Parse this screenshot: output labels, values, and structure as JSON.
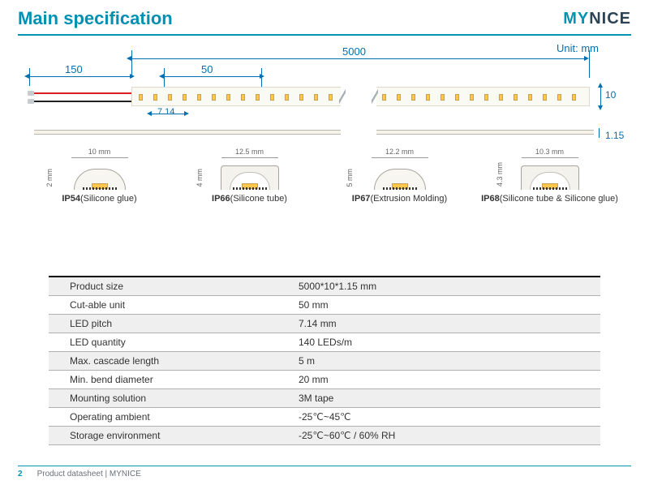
{
  "header": {
    "title": "Main specification",
    "logo_part1": "MY",
    "logo_part2": "NICE"
  },
  "diagram": {
    "unit_label": "Unit: mm",
    "dim_5000": "5000",
    "dim_150": "150",
    "dim_50": "50",
    "dim_714": "7.14",
    "dim_10": "10",
    "dim_115": "1.15",
    "colors": {
      "dim_line": "#0070b0",
      "strip_bg": "#fafaf5",
      "led_chip": "#ffc84d",
      "wire_red": "#d82020",
      "wire_black": "#202020"
    }
  },
  "cross_sections": [
    {
      "width_label": "10 mm",
      "height_label": "2 mm",
      "ip": "IP54",
      "desc": "(Silicone glue)"
    },
    {
      "width_label": "12.5 mm",
      "height_label": "4 mm",
      "ip": "IP66",
      "desc": "(Silicone tube)"
    },
    {
      "width_label": "12.2 mm",
      "height_label": "5 mm",
      "ip": "IP67",
      "desc": "(Extrusion Molding)"
    },
    {
      "width_label": "10.3 mm",
      "height_label": "4.3 mm",
      "ip": "IP68",
      "desc": "(Silicone tube & Silicone glue)"
    }
  ],
  "spec_table": [
    {
      "key": "Product size",
      "val": "5000*10*1.15 mm"
    },
    {
      "key": "Cut-able unit",
      "val": "50 mm"
    },
    {
      "key": "LED pitch",
      "val": "7.14 mm"
    },
    {
      "key": "LED quantity",
      "val": "140 LEDs/m"
    },
    {
      "key": "Max. cascade length",
      "val": "5 m"
    },
    {
      "key": "Min. bend diameter",
      "val": "20 mm"
    },
    {
      "key": "Mounting solution",
      "val": "3M tape"
    },
    {
      "key": "Operating ambient",
      "val": "-25℃~45℃"
    },
    {
      "key": "Storage environment",
      "val": "-25℃~60℃ / 60% RH"
    }
  ],
  "footer": {
    "page": "2",
    "text": "Product datasheet | MYNICE"
  }
}
